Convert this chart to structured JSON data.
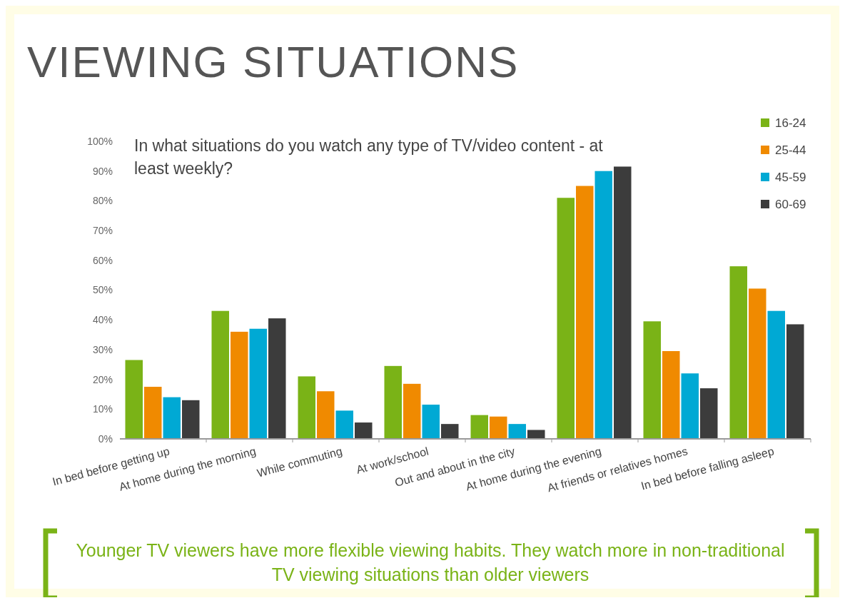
{
  "chart_data": {
    "type": "bar",
    "title": "VIEWING SITUATIONS",
    "subtitle": "In what situations do you watch any type of TV/video content - at least weekly?",
    "categories": [
      "In bed before getting up",
      "At home during the morning",
      "While commuting",
      "At work/school",
      "Out and about in the city",
      "At home during the evening",
      "At friends or relatives homes",
      "In bed before falling asleep"
    ],
    "series": [
      {
        "name": "16-24",
        "color": "#7ab317",
        "values": [
          26.5,
          43,
          21,
          24.5,
          8,
          81,
          39.5,
          58
        ]
      },
      {
        "name": "25-44",
        "color": "#f08a00",
        "values": [
          17.5,
          36,
          16,
          18.5,
          7.5,
          85,
          29.5,
          50.5
        ]
      },
      {
        "name": "45-59",
        "color": "#00a9d4",
        "values": [
          14,
          37,
          9.5,
          11.5,
          5,
          90,
          22,
          43
        ]
      },
      {
        "name": "60-69",
        "color": "#3c3c3c",
        "values": [
          13,
          40.5,
          5.5,
          5,
          3,
          91.5,
          17,
          38.5
        ]
      }
    ],
    "ylim": [
      0,
      100
    ],
    "yticks": [
      {
        "value": 0,
        "label": "0%"
      },
      {
        "value": 10,
        "label": "10%"
      },
      {
        "value": 20,
        "label": "20%"
      },
      {
        "value": 30,
        "label": "30%"
      },
      {
        "value": 40,
        "label": "40%"
      },
      {
        "value": 50,
        "label": "50%"
      },
      {
        "value": 60,
        "label": "60%"
      },
      {
        "value": 70,
        "label": "70%"
      },
      {
        "value": 80,
        "label": "80%"
      },
      {
        "value": 90,
        "label": "90%"
      },
      {
        "value": 100,
        "label": "100%"
      }
    ],
    "grid": false,
    "legend": "top right",
    "annotations": [
      "Younger TV viewers have more flexible viewing habits. They watch more in non-traditional TV viewing situations than older viewers"
    ]
  }
}
